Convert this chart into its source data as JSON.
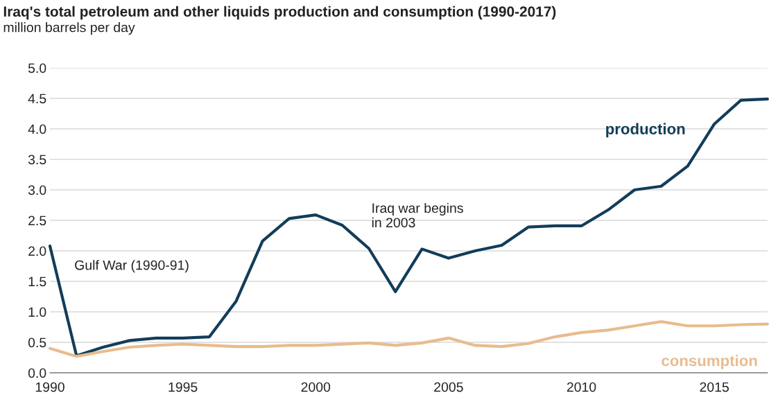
{
  "chart_data": {
    "type": "line",
    "title": "Iraq's total petroleum and other liquids production and consumption (1990-2017)",
    "subtitle": "million barrels per day",
    "x": [
      1990,
      1991,
      1992,
      1993,
      1994,
      1995,
      1996,
      1997,
      1998,
      1999,
      2000,
      2001,
      2002,
      2003,
      2004,
      2005,
      2006,
      2007,
      2008,
      2009,
      2010,
      2011,
      2012,
      2013,
      2014,
      2015,
      2016,
      2017
    ],
    "series": [
      {
        "name": "production",
        "color": "#123d5a",
        "values": [
          2.08,
          0.28,
          0.42,
          0.53,
          0.57,
          0.57,
          0.59,
          1.17,
          2.16,
          2.53,
          2.59,
          2.42,
          2.04,
          1.33,
          2.03,
          1.88,
          2.0,
          2.09,
          2.39,
          2.41,
          2.41,
          2.67,
          3.0,
          3.06,
          3.39,
          4.08,
          4.47,
          4.49
        ]
      },
      {
        "name": "consumption",
        "color": "#e8bc8e",
        "values": [
          0.4,
          0.27,
          0.35,
          0.42,
          0.45,
          0.47,
          0.45,
          0.43,
          0.43,
          0.45,
          0.45,
          0.47,
          0.49,
          0.45,
          0.49,
          0.57,
          0.45,
          0.43,
          0.48,
          0.59,
          0.66,
          0.7,
          0.77,
          0.84,
          0.77,
          0.77,
          0.79,
          0.8
        ]
      }
    ],
    "annotations": [
      "Gulf War (1990-91)",
      "Iraq war begins\nin 2003"
    ],
    "xlim": [
      1990,
      2017
    ],
    "xticks": [
      1990,
      1995,
      2000,
      2005,
      2010,
      2015
    ],
    "ylim": [
      0,
      5
    ],
    "yticks": [
      {
        "value": 0,
        "label": "0.0"
      },
      0.5,
      {
        "value": 1,
        "label": "1.0"
      },
      1.5,
      {
        "value": 2,
        "label": "2.0"
      },
      2.5,
      {
        "value": 3,
        "label": "3.0"
      },
      3.5,
      {
        "value": 4,
        "label": "4.0"
      },
      4.5,
      {
        "value": 5,
        "label": "5.0"
      }
    ],
    "grid": "y",
    "legend": false,
    "line_style": "solid",
    "marker": "none"
  }
}
